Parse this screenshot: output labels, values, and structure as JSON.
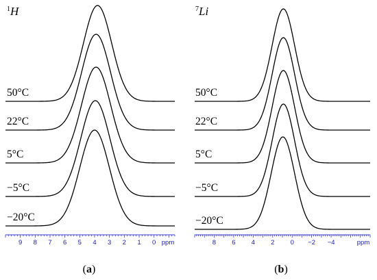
{
  "chart_data": [
    {
      "type": "line",
      "panel_label": "a",
      "nucleus_sup": "1",
      "nucleus_sym": "H",
      "x_unit": "ppm",
      "xlim": [
        10,
        -1.4
      ],
      "tick_labels": [
        9,
        8,
        7,
        6,
        5,
        4,
        3,
        2,
        1,
        0
      ],
      "series": [
        {
          "label": "50°C",
          "center": 3.8,
          "width": 0.95
        },
        {
          "label": "22°C",
          "center": 3.9,
          "width": 0.97
        },
        {
          "label": "5°C",
          "center": 3.9,
          "width": 0.98
        },
        {
          "label": "−5°C",
          "center": 3.95,
          "width": 0.98
        },
        {
          "label": "−20°C",
          "center": 4.0,
          "width": 1.0
        }
      ]
    },
    {
      "type": "line",
      "panel_label": "b",
      "nucleus_sup": "7",
      "nucleus_sym": "Li",
      "x_unit": "ppm",
      "xlim": [
        10,
        -8
      ],
      "tick_labels": [
        8,
        6,
        4,
        2,
        0,
        -2,
        -4
      ],
      "series": [
        {
          "label": "50°C",
          "center": 0.9,
          "width": 1.15
        },
        {
          "label": "22°C",
          "center": 0.9,
          "width": 1.15
        },
        {
          "label": "5°C",
          "center": 0.9,
          "width": 1.15
        },
        {
          "label": "−5°C",
          "center": 0.9,
          "width": 1.15
        },
        {
          "label": "−20°C",
          "center": 0.95,
          "width": 1.2
        }
      ]
    }
  ]
}
